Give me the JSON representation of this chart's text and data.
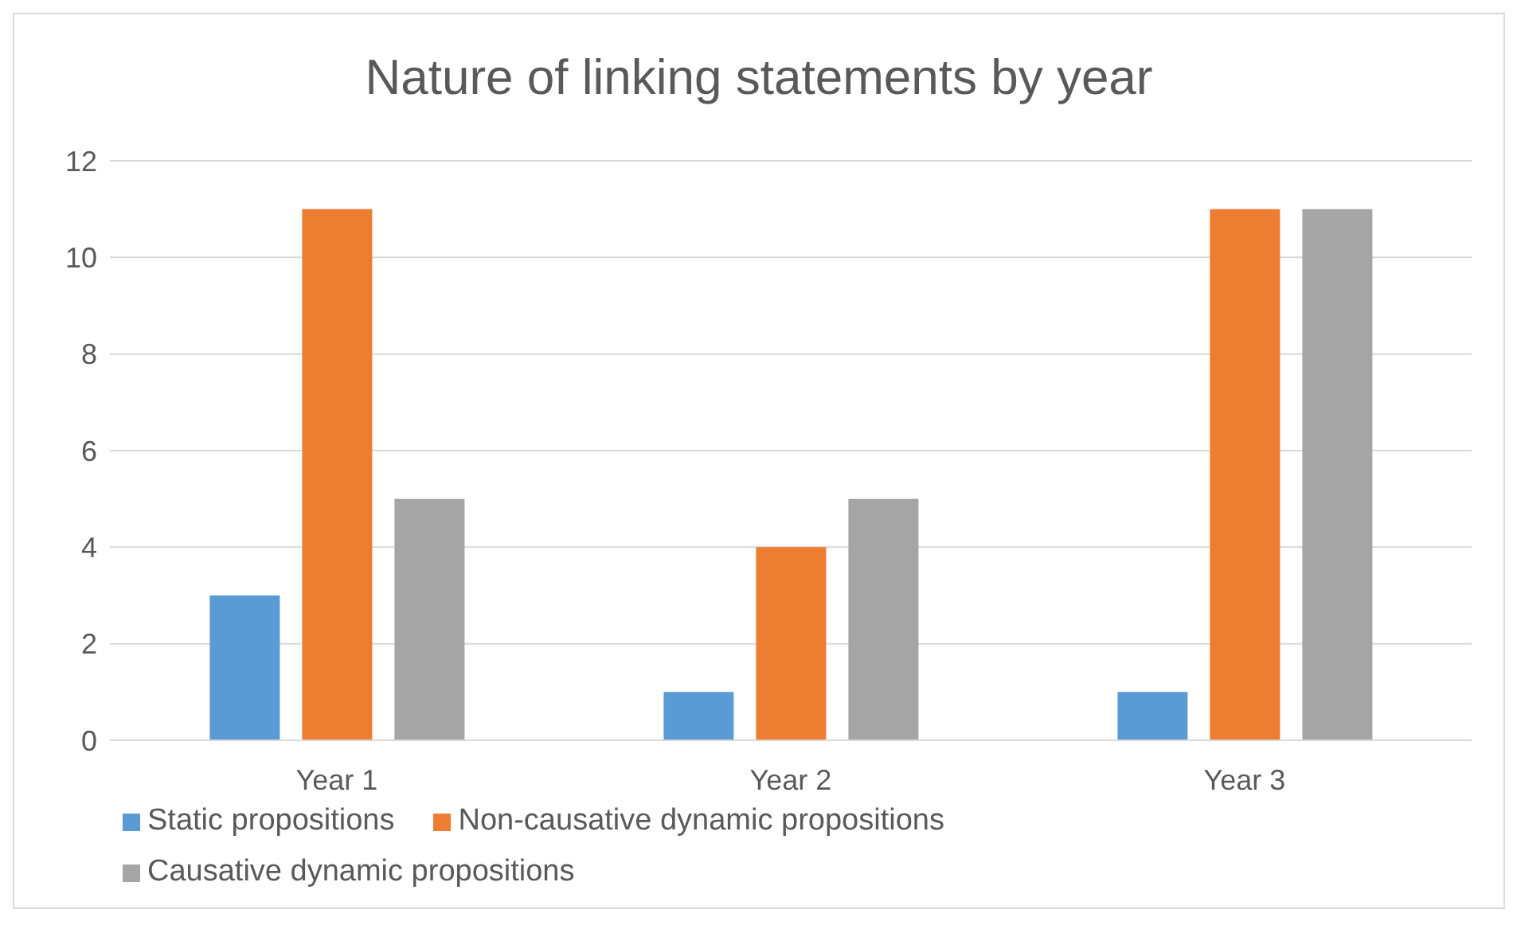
{
  "chart_data": {
    "type": "bar",
    "title": "Nature of linking statements by year",
    "categories": [
      "Year 1",
      "Year 2",
      "Year 3"
    ],
    "series": [
      {
        "name": "Static propositions",
        "color": "#5b9bd5",
        "values": [
          3,
          1,
          1
        ]
      },
      {
        "name": "Non-causative dynamic propositions",
        "color": "#ed7d31",
        "values": [
          11,
          4,
          11
        ]
      },
      {
        "name": "Causative dynamic propositions",
        "color": "#a5a5a5",
        "values": [
          5,
          5,
          11
        ]
      }
    ],
    "ylim": [
      0,
      12
    ],
    "yticks": [
      0,
      2,
      4,
      6,
      8,
      10,
      12
    ],
    "grid": "y",
    "legend": "bottom"
  }
}
